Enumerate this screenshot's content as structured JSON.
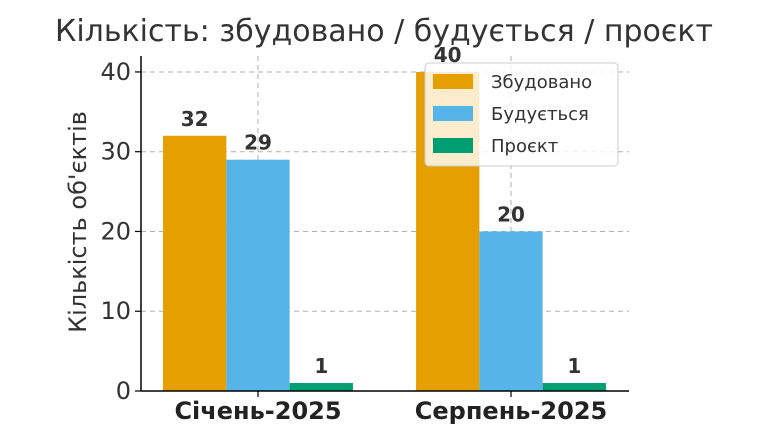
{
  "chart_data": {
    "type": "bar",
    "title": "Кількість: збудовано / будується / проєкт",
    "xlabel": "",
    "ylabel": "Кількість об'єктів",
    "categories": [
      "Січень-2025",
      "Серпень-2025"
    ],
    "series": [
      {
        "name": "Збудовано",
        "values": [
          32,
          40
        ],
        "color": "#E69F00"
      },
      {
        "name": "Будується",
        "values": [
          29,
          20
        ],
        "color": "#56B4E9"
      },
      {
        "name": "Проєкт",
        "values": [
          1,
          1
        ],
        "color": "#009E73"
      }
    ],
    "ylim": [
      0,
      42
    ],
    "yticks": [
      0,
      10,
      20,
      30,
      40
    ],
    "grid": true,
    "legend_position": "top-right"
  }
}
